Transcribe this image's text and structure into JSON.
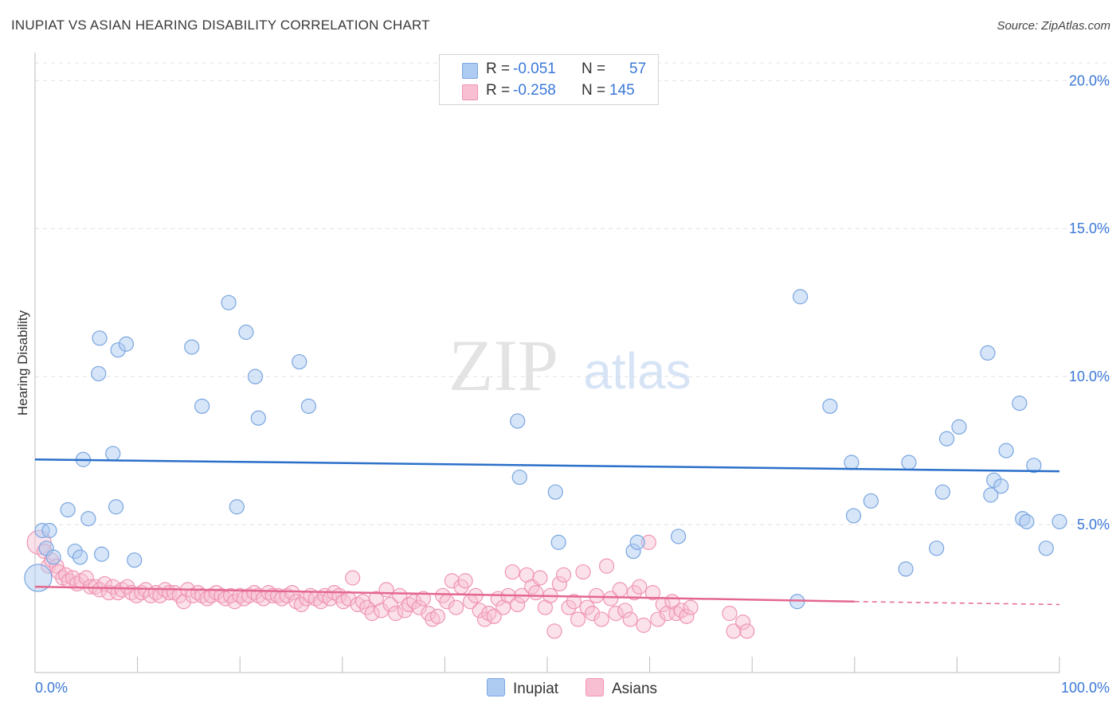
{
  "title": "INUPIAT VS ASIAN HEARING DISABILITY CORRELATION CHART",
  "source": "Source: ZipAtlas.com",
  "watermark": {
    "zip": "ZIP",
    "atlas": "atlas"
  },
  "legend": {
    "rows": [
      {
        "r_label": "R =",
        "r_value": "-0.051",
        "n_label": "N =",
        "n_value": "57"
      },
      {
        "r_label": "R =",
        "r_value": "-0.258",
        "n_label": "N =",
        "n_value": "145"
      }
    ]
  },
  "bottom_legend": [
    "Inupiat",
    "Asians"
  ],
  "colors": {
    "inupiat_fill": "#aecbf2",
    "inupiat_stroke": "#7aa6e0",
    "inupiat_line": "#2a6fc9",
    "asians_fill": "#f7bfd1",
    "asians_stroke": "#ef94b4",
    "asians_line": "#e4678f",
    "grid": "#e0e0e0",
    "tick_label": "#3b78d8",
    "axis": "#bdbdbd"
  },
  "chart_data": {
    "type": "scatter",
    "title": "INUPIAT VS ASIAN HEARING DISABILITY CORRELATION CHART",
    "xlabel": "",
    "ylabel": "Hearing Disability",
    "xlim": [
      0,
      100
    ],
    "ylim": [
      0,
      20.6
    ],
    "x_tick_labels": [
      "0.0%",
      "100.0%"
    ],
    "y_ticks": [
      5,
      10,
      15,
      20
    ],
    "y_tick_labels": [
      "5.0%",
      "10.0%",
      "15.0%",
      "20.0%"
    ],
    "grid": true,
    "legend_position": "top-center",
    "series": [
      {
        "name": "Inupiat",
        "r": -0.051,
        "n": 57,
        "trend": {
          "x": [
            0,
            100
          ],
          "y": [
            7.2,
            6.8
          ]
        },
        "points": [
          [
            0.3,
            3.2
          ],
          [
            0.7,
            4.8
          ],
          [
            1.4,
            4.8
          ],
          [
            1.1,
            4.2
          ],
          [
            1.8,
            3.9
          ],
          [
            3.2,
            5.5
          ],
          [
            3.9,
            4.1
          ],
          [
            4.4,
            3.9
          ],
          [
            4.7,
            7.2
          ],
          [
            5.2,
            5.2
          ],
          [
            6.2,
            10.1
          ],
          [
            6.3,
            11.3
          ],
          [
            6.5,
            4.0
          ],
          [
            7.6,
            7.4
          ],
          [
            7.9,
            5.6
          ],
          [
            8.1,
            10.9
          ],
          [
            8.9,
            11.1
          ],
          [
            9.7,
            3.8
          ],
          [
            15.3,
            11.0
          ],
          [
            16.3,
            9.0
          ],
          [
            18.9,
            12.5
          ],
          [
            19.7,
            5.6
          ],
          [
            20.6,
            11.5
          ],
          [
            21.5,
            10.0
          ],
          [
            21.8,
            8.6
          ],
          [
            25.8,
            10.5
          ],
          [
            26.7,
            9.0
          ],
          [
            47.1,
            8.5
          ],
          [
            50.8,
            6.1
          ],
          [
            51.1,
            4.4
          ],
          [
            58.4,
            4.1
          ],
          [
            58.8,
            4.4
          ],
          [
            62.8,
            4.6
          ],
          [
            74.7,
            12.7
          ],
          [
            74.4,
            2.4
          ],
          [
            77.6,
            9.0
          ],
          [
            79.7,
            7.1
          ],
          [
            79.9,
            5.3
          ],
          [
            81.6,
            5.8
          ],
          [
            85.0,
            3.5
          ],
          [
            85.3,
            7.1
          ],
          [
            88.0,
            4.2
          ],
          [
            88.6,
            6.1
          ],
          [
            89.0,
            7.9
          ],
          [
            90.2,
            8.3
          ],
          [
            93.0,
            10.8
          ],
          [
            93.3,
            6.0
          ],
          [
            93.6,
            6.5
          ],
          [
            94.3,
            6.3
          ],
          [
            94.8,
            7.5
          ],
          [
            96.1,
            9.1
          ],
          [
            96.4,
            5.2
          ],
          [
            96.8,
            5.1
          ],
          [
            97.5,
            7.0
          ],
          [
            98.7,
            4.2
          ],
          [
            100.0,
            5.1
          ],
          [
            47.3,
            6.6
          ]
        ]
      },
      {
        "name": "Asians",
        "r": -0.258,
        "n": 145,
        "trend": {
          "x": [
            0,
            80,
            100
          ],
          "y": [
            2.9,
            2.4,
            2.3
          ]
        },
        "points": [
          [
            0.4,
            4.4
          ],
          [
            0.9,
            4.1
          ],
          [
            1.3,
            3.6
          ],
          [
            1.6,
            3.8
          ],
          [
            2.1,
            3.6
          ],
          [
            2.3,
            3.4
          ],
          [
            2.7,
            3.2
          ],
          [
            3.0,
            3.3
          ],
          [
            3.3,
            3.1
          ],
          [
            3.7,
            3.2
          ],
          [
            4.1,
            3.0
          ],
          [
            4.5,
            3.1
          ],
          [
            5.0,
            3.2
          ],
          [
            5.4,
            2.9
          ],
          [
            5.9,
            2.9
          ],
          [
            6.3,
            2.8
          ],
          [
            6.8,
            3.0
          ],
          [
            7.2,
            2.7
          ],
          [
            7.6,
            2.9
          ],
          [
            8.1,
            2.7
          ],
          [
            8.5,
            2.8
          ],
          [
            9.0,
            2.9
          ],
          [
            9.4,
            2.7
          ],
          [
            9.9,
            2.6
          ],
          [
            10.4,
            2.7
          ],
          [
            10.8,
            2.8
          ],
          [
            11.3,
            2.6
          ],
          [
            11.8,
            2.7
          ],
          [
            12.2,
            2.6
          ],
          [
            12.7,
            2.8
          ],
          [
            13.1,
            2.7
          ],
          [
            13.6,
            2.7
          ],
          [
            14.1,
            2.6
          ],
          [
            14.5,
            2.4
          ],
          [
            14.9,
            2.8
          ],
          [
            15.4,
            2.6
          ],
          [
            15.9,
            2.7
          ],
          [
            16.3,
            2.6
          ],
          [
            16.8,
            2.5
          ],
          [
            17.2,
            2.6
          ],
          [
            17.7,
            2.7
          ],
          [
            18.2,
            2.6
          ],
          [
            18.6,
            2.5
          ],
          [
            19.1,
            2.6
          ],
          [
            19.5,
            2.4
          ],
          [
            20.0,
            2.6
          ],
          [
            20.4,
            2.5
          ],
          [
            20.9,
            2.6
          ],
          [
            21.4,
            2.7
          ],
          [
            21.8,
            2.6
          ],
          [
            22.3,
            2.5
          ],
          [
            22.8,
            2.7
          ],
          [
            23.2,
            2.6
          ],
          [
            23.7,
            2.6
          ],
          [
            24.1,
            2.5
          ],
          [
            24.6,
            2.6
          ],
          [
            25.1,
            2.7
          ],
          [
            25.5,
            2.4
          ],
          [
            26.0,
            2.3
          ],
          [
            26.5,
            2.5
          ],
          [
            26.9,
            2.6
          ],
          [
            27.4,
            2.5
          ],
          [
            27.9,
            2.4
          ],
          [
            28.3,
            2.6
          ],
          [
            28.8,
            2.5
          ],
          [
            29.2,
            2.7
          ],
          [
            29.7,
            2.6
          ],
          [
            30.1,
            2.4
          ],
          [
            30.6,
            2.5
          ],
          [
            31.0,
            3.2
          ],
          [
            31.5,
            2.3
          ],
          [
            32.0,
            2.4
          ],
          [
            32.4,
            2.2
          ],
          [
            32.9,
            2.0
          ],
          [
            33.3,
            2.5
          ],
          [
            33.8,
            2.1
          ],
          [
            34.3,
            2.8
          ],
          [
            34.7,
            2.3
          ],
          [
            35.2,
            2.0
          ],
          [
            35.6,
            2.6
          ],
          [
            36.1,
            2.1
          ],
          [
            36.5,
            2.3
          ],
          [
            37.0,
            2.4
          ],
          [
            37.5,
            2.2
          ],
          [
            37.9,
            2.5
          ],
          [
            38.4,
            2.0
          ],
          [
            38.8,
            1.8
          ],
          [
            39.3,
            1.9
          ],
          [
            39.8,
            2.6
          ],
          [
            40.2,
            2.4
          ],
          [
            40.7,
            3.1
          ],
          [
            41.1,
            2.2
          ],
          [
            41.6,
            2.9
          ],
          [
            42.0,
            3.1
          ],
          [
            42.5,
            2.4
          ],
          [
            43.0,
            2.6
          ],
          [
            43.4,
            2.1
          ],
          [
            43.9,
            1.8
          ],
          [
            44.3,
            2.0
          ],
          [
            44.8,
            1.9
          ],
          [
            45.2,
            2.5
          ],
          [
            45.7,
            2.2
          ],
          [
            46.2,
            2.6
          ],
          [
            46.6,
            3.4
          ],
          [
            47.1,
            2.3
          ],
          [
            47.5,
            2.6
          ],
          [
            48.0,
            3.3
          ],
          [
            48.5,
            2.9
          ],
          [
            48.9,
            2.7
          ],
          [
            49.3,
            3.2
          ],
          [
            49.8,
            2.2
          ],
          [
            50.3,
            2.6
          ],
          [
            50.7,
            1.4
          ],
          [
            51.2,
            3.0
          ],
          [
            51.6,
            3.3
          ],
          [
            52.1,
            2.2
          ],
          [
            52.6,
            2.4
          ],
          [
            53.0,
            1.8
          ],
          [
            53.5,
            3.4
          ],
          [
            53.9,
            2.2
          ],
          [
            54.4,
            2.0
          ],
          [
            54.8,
            2.6
          ],
          [
            55.3,
            1.8
          ],
          [
            55.8,
            3.6
          ],
          [
            56.2,
            2.5
          ],
          [
            56.7,
            2.0
          ],
          [
            57.1,
            2.8
          ],
          [
            57.6,
            2.1
          ],
          [
            58.1,
            1.8
          ],
          [
            58.5,
            2.7
          ],
          [
            59.0,
            2.9
          ],
          [
            59.4,
            1.6
          ],
          [
            59.9,
            4.4
          ],
          [
            60.3,
            2.7
          ],
          [
            60.8,
            1.8
          ],
          [
            61.3,
            2.3
          ],
          [
            61.7,
            2.0
          ],
          [
            62.2,
            2.4
          ],
          [
            62.6,
            2.0
          ],
          [
            63.1,
            2.1
          ],
          [
            63.6,
            1.9
          ],
          [
            64.0,
            2.2
          ],
          [
            67.8,
            2.0
          ],
          [
            68.2,
            1.4
          ],
          [
            69.1,
            1.7
          ],
          [
            69.5,
            1.4
          ]
        ]
      }
    ]
  }
}
